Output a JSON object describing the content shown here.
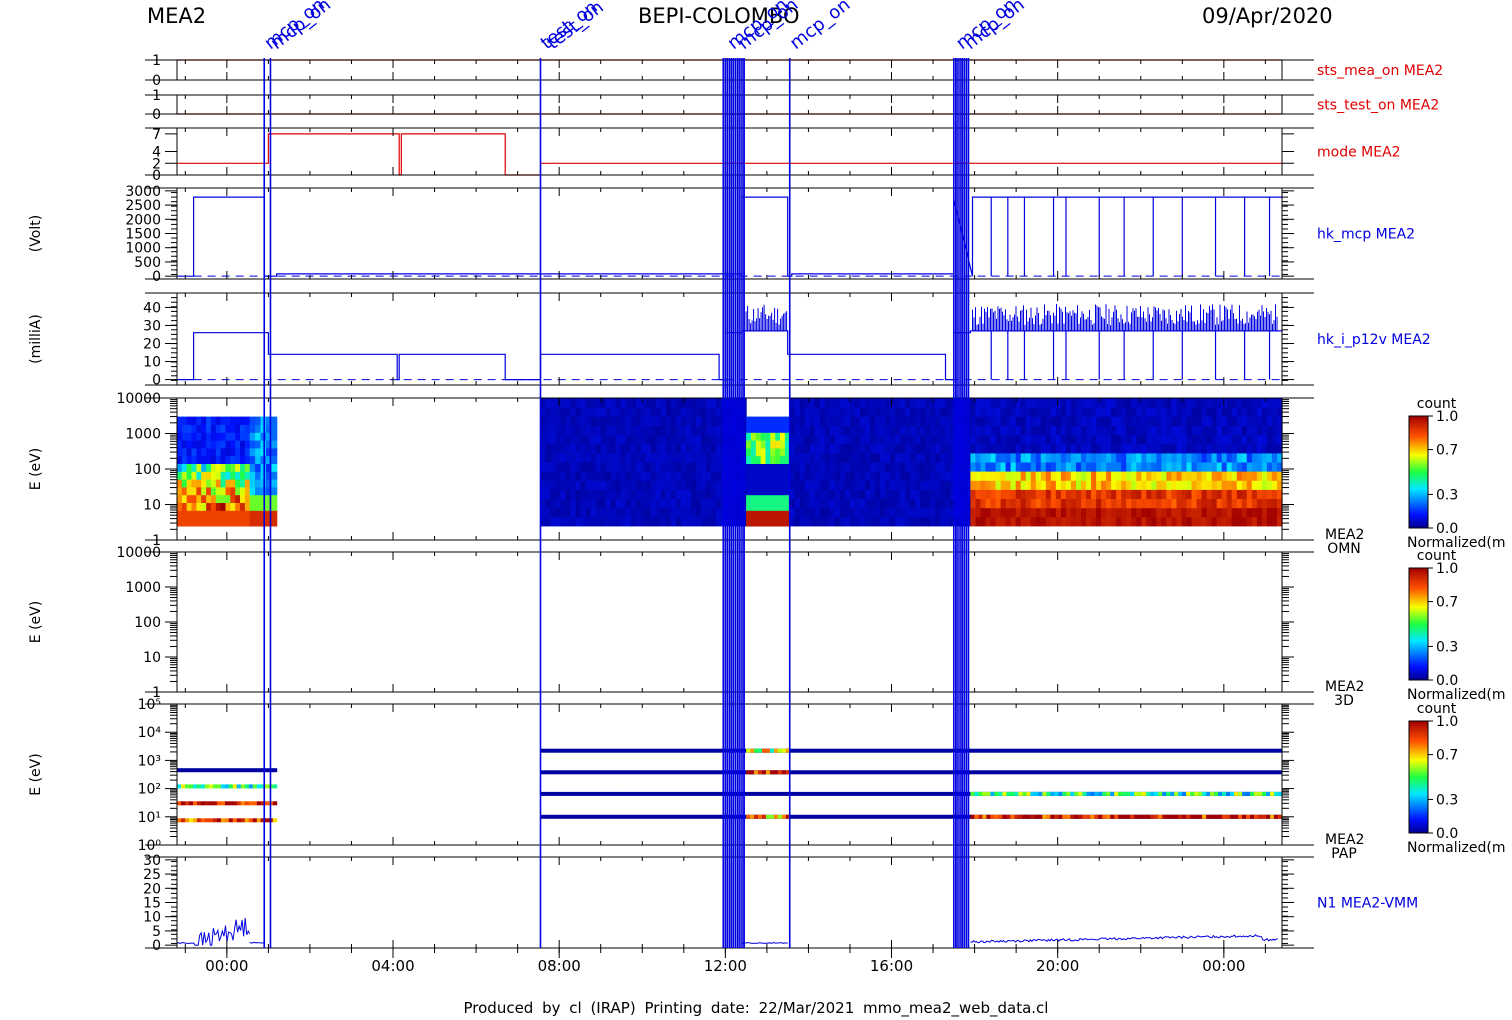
{
  "header": {
    "left": "MEA2",
    "center": "BEPI-COLOMBO",
    "right": "09/Apr/2020"
  },
  "footer": {
    "text": "Produced by cl (IRAP)   Printing date: 22/Mar/2021   mmo_mea2_web_data.cl"
  },
  "colors": {
    "red": "#e00000",
    "blue": "#0000e0",
    "frame": "#000000"
  },
  "chart_data": {
    "type": "line",
    "x_axis": {
      "ticks": [
        "00:00",
        "04:00",
        "08:00",
        "12:00",
        "16:00",
        "20:00",
        "00:00"
      ],
      "range_hours": [
        -1.2,
        25.4
      ]
    },
    "event_markers": {
      "lines_hours": [
        0.9,
        1.05,
        7.55,
        12.0,
        12.15,
        12.3,
        12.45,
        13.55,
        17.55,
        17.7,
        17.85
      ],
      "bands_hours": [
        [
          11.95,
          12.5
        ],
        [
          17.5,
          17.9
        ]
      ],
      "labels": [
        {
          "x": 0.95,
          "text": "mcp_on"
        },
        {
          "x": 1.1,
          "text": "mcp_on"
        },
        {
          "x": 7.6,
          "text": "test_on"
        },
        {
          "x": 7.75,
          "text": "test_on"
        },
        {
          "x": 12.1,
          "text": "mcp_on"
        },
        {
          "x": 12.35,
          "text": "mcp_on"
        },
        {
          "x": 13.6,
          "text": "mcp_on"
        },
        {
          "x": 17.6,
          "text": "mcp_on"
        },
        {
          "x": 17.8,
          "text": "mcp_on"
        }
      ]
    },
    "panels": [
      {
        "name": "sts_mea_on MEA2",
        "color": "red",
        "ylim": [
          0,
          1
        ],
        "ticks": [
          "0",
          "1"
        ],
        "x": [
          -1.2,
          25.4
        ],
        "y": [
          1,
          1
        ]
      },
      {
        "name": "sts_test_on MEA2",
        "color": "red",
        "ylim": [
          0,
          1
        ],
        "ticks": [
          "0",
          "1"
        ],
        "x": [
          -1.2,
          25.4
        ],
        "y": [
          0,
          0
        ]
      },
      {
        "name": "mode MEA2",
        "color": "red",
        "ylim": [
          0,
          8
        ],
        "ticks": [
          "0",
          "2",
          "4",
          "7"
        ],
        "x": [
          -1.2,
          1.0,
          1.0,
          4.15,
          4.15,
          4.2,
          4.2,
          6.7,
          6.7,
          7.55,
          7.55,
          25.4
        ],
        "y": [
          2,
          2,
          7,
          7,
          0,
          0,
          7,
          7,
          0,
          0,
          2,
          2
        ]
      },
      {
        "name": "hk_mcp MEA2",
        "ylabel": "(Volt)",
        "color": "blue",
        "ylim": [
          -100,
          3100
        ],
        "ticks": [
          "0",
          "500",
          "1000",
          "1500",
          "2000",
          "2500",
          "3000"
        ],
        "x": [
          -1.2,
          -0.8,
          -0.8,
          0.9,
          0.9,
          1.2,
          1.2,
          12.4,
          12.4,
          13.5,
          13.5,
          13.6,
          13.6,
          17.5,
          17.5,
          17.95,
          17.95,
          25.4
        ],
        "y": [
          0,
          0,
          2780,
          2780,
          0,
          0,
          80,
          80,
          2780,
          2780,
          0,
          0,
          80,
          80,
          2700,
          0,
          2780,
          2780
        ],
        "dropouts_hours": [
          18.4,
          18.8,
          19.2,
          19.9,
          20.2,
          21.0,
          21.6,
          22.3,
          23.0,
          23.8,
          24.5,
          25.1
        ]
      },
      {
        "name": "hk_i_p12v MEA2",
        "ylabel": "(milliA)",
        "color": "blue",
        "ylim": [
          -3,
          48
        ],
        "ticks": [
          "0",
          "10",
          "20",
          "30",
          "40"
        ],
        "x": [
          -1.2,
          -0.8,
          -0.8,
          1.0,
          1.0,
          4.1,
          4.1,
          4.15,
          4.15,
          6.7,
          6.7,
          7.55,
          7.55,
          11.85,
          11.85,
          12.0,
          12.0,
          12.4,
          12.4,
          13.5,
          13.5,
          17.3,
          17.3,
          17.5,
          17.5,
          17.9,
          17.9,
          25.4
        ],
        "y": [
          0,
          0,
          26,
          26,
          14,
          14,
          0,
          0,
          14,
          14,
          0,
          0,
          14,
          14,
          0,
          0,
          26,
          26,
          27,
          27,
          14,
          14,
          0,
          0,
          26,
          26,
          27,
          27
        ],
        "spiky_segments": [
          [
            12.5,
            13.5
          ],
          [
            17.95,
            25.3
          ]
        ],
        "dropouts_hours": [
          18.4,
          18.8,
          19.2,
          19.9,
          20.2,
          21.0,
          21.6,
          22.3,
          23.0,
          23.8,
          24.5,
          25.1
        ]
      },
      {
        "name": "MEA2",
        "name2": "OMN",
        "ylabel": "E (eV)",
        "kind": "spectrogram",
        "scale": "log",
        "ylim": [
          1,
          10000
        ],
        "ticks": [
          "1",
          "10",
          "100",
          "1000",
          "10000"
        ],
        "blocks": [
          {
            "x": [
              -1.2,
              0.55
            ],
            "y": [
              2.5,
              3000
            ],
            "profile": "low_hot"
          },
          {
            "x": 0.55,
            "x_end": 1.2,
            "y": [
              2.5,
              3000
            ],
            "profile": "low_hot2"
          },
          {
            "x": [
              7.55,
              12.5
            ],
            "y": [
              2.5,
              10000
            ],
            "profile": "cold"
          },
          {
            "x": [
              12.5,
              13.55
            ],
            "y": [
              2.5,
              3000
            ],
            "profile": "mid"
          },
          {
            "x": [
              13.55,
              17.9
            ],
            "y": [
              2.5,
              10000
            ],
            "profile": "cold"
          },
          {
            "x": [
              17.9,
              25.4
            ],
            "y": [
              2.5,
              10000
            ],
            "profile": "solarwind"
          }
        ]
      },
      {
        "name": "MEA2",
        "name2": "3D",
        "ylabel": "E (eV)",
        "kind": "spectrogram",
        "scale": "log",
        "ylim": [
          1,
          10000
        ],
        "ticks": [
          "1",
          "10",
          "100",
          "1000",
          "10000"
        ],
        "blocks": []
      },
      {
        "name": "MEA2",
        "name2": "PAP",
        "ylabel": "E (eV)",
        "kind": "bands",
        "scale": "log",
        "ylim": [
          1,
          100000
        ],
        "ticks": [
          "10⁰",
          "10¹",
          "10²",
          "10³",
          "10⁴",
          "10⁵"
        ],
        "bands": [
          {
            "x": [
              -1.2,
              1.2
            ],
            "y": 450,
            "c": 0.0
          },
          {
            "x": [
              -1.2,
              1.2
            ],
            "y": 120,
            "c": 0.45
          },
          {
            "x": [
              -1.2,
              1.2
            ],
            "y": 30,
            "c": 0.9
          },
          {
            "x": [
              -1.2,
              1.2
            ],
            "y": 7.5,
            "c": 0.85
          },
          {
            "x": [
              7.55,
              25.4
            ],
            "y": 2200,
            "c": 0.0
          },
          {
            "x": [
              7.55,
              25.4
            ],
            "y": 380,
            "c": 0.0
          },
          {
            "x": [
              7.55,
              25.4
            ],
            "y": 65,
            "c": 0.0
          },
          {
            "x": [
              7.55,
              25.4
            ],
            "y": 10,
            "c": 0.0
          },
          {
            "x": [
              12.5,
              13.55
            ],
            "y": 2200,
            "c": 0.6
          },
          {
            "x": [
              12.5,
              13.55
            ],
            "y": 380,
            "c": 0.95
          },
          {
            "x": [
              12.5,
              13.55
            ],
            "y": 10,
            "c": 0.75
          },
          {
            "x": [
              17.9,
              25.4
            ],
            "y": 65,
            "c": 0.45
          },
          {
            "x": [
              17.9,
              25.4
            ],
            "y": 10,
            "c": 0.95
          }
        ]
      },
      {
        "name": "N1 MEA2-VMM",
        "color": "blue",
        "ylim": [
          -1,
          31
        ],
        "ticks": [
          "0",
          "5",
          "10",
          "15",
          "20",
          "25",
          "30"
        ],
        "segments": [
          {
            "x": [
              -1.2,
              0.55
            ],
            "base": 0.5,
            "profile": "noisy_rise"
          },
          {
            "x": [
              0.55,
              0.9
            ],
            "base": 0.7,
            "profile": "flat"
          },
          {
            "x": [
              12.4,
              13.5
            ],
            "base": 0.6,
            "profile": "flat"
          },
          {
            "x": [
              17.9,
              25.3
            ],
            "base": 1.0,
            "profile": "slow_rise"
          }
        ]
      }
    ],
    "colorbars": [
      {
        "title": "count",
        "label": "Normalized(m",
        "ticks": [
          "0.0",
          "0.3",
          "0.7",
          "1.0"
        ],
        "vals": [
          0.0,
          0.3,
          0.7,
          1.0
        ]
      },
      {
        "title": "count",
        "label": "Normalized(m",
        "ticks": [
          "0.0",
          "0.3",
          "0.7",
          "1.0"
        ],
        "vals": [
          0.0,
          0.3,
          0.7,
          1.0
        ]
      },
      {
        "title": "count",
        "label": "Normalized(m",
        "ticks": [
          "0.0",
          "0.3",
          "0.7",
          "1.0"
        ],
        "vals": [
          0.0,
          0.3,
          0.7,
          1.0
        ]
      }
    ]
  }
}
